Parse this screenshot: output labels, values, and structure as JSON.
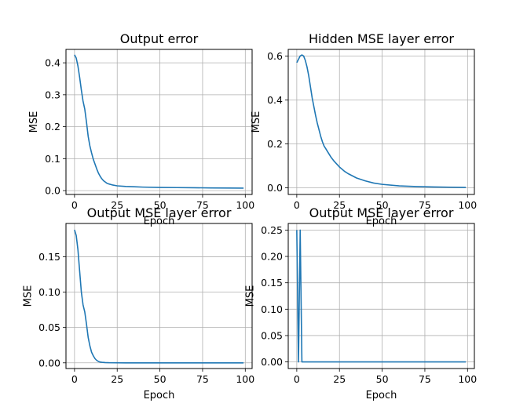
{
  "figure": {
    "background": "#ffffff",
    "line_color": "#1f77b4",
    "grid_color": "#b0b0b0"
  },
  "chart_data": [
    {
      "type": "line",
      "title": "Output error",
      "xlabel": "Epoch",
      "ylabel": "MSE",
      "xlim": [
        -5,
        104
      ],
      "ylim": [
        -0.012,
        0.442
      ],
      "xticks": [
        0,
        25,
        50,
        75,
        100
      ],
      "xtick_labels": [
        "0",
        "25",
        "50",
        "75",
        "100"
      ],
      "yticks": [
        0.0,
        0.1,
        0.2,
        0.3,
        0.4
      ],
      "ytick_labels": [
        "0.0",
        "0.1",
        "0.2",
        "0.3",
        "0.4"
      ],
      "grid": true,
      "series": [
        {
          "x": [
            0,
            1,
            2,
            3,
            4,
            5,
            6,
            7,
            8,
            9,
            10,
            11,
            12,
            13,
            14,
            15,
            16,
            17,
            18,
            19,
            20,
            22,
            25,
            30,
            35,
            40,
            50,
            60,
            70,
            80,
            90,
            99
          ],
          "y": [
            0.425,
            0.415,
            0.39,
            0.355,
            0.315,
            0.28,
            0.255,
            0.215,
            0.17,
            0.14,
            0.118,
            0.098,
            0.083,
            0.068,
            0.055,
            0.045,
            0.037,
            0.031,
            0.027,
            0.023,
            0.021,
            0.018,
            0.015,
            0.013,
            0.012,
            0.011,
            0.01,
            0.0095,
            0.009,
            0.0085,
            0.008,
            0.0078
          ]
        }
      ]
    },
    {
      "type": "line",
      "title": "Hidden MSE layer error",
      "xlabel": "Epoch",
      "ylabel": "MSE",
      "xlim": [
        -5,
        104
      ],
      "ylim": [
        -0.03,
        0.63
      ],
      "xticks": [
        0,
        25,
        50,
        75,
        100
      ],
      "xtick_labels": [
        "0",
        "25",
        "50",
        "75",
        "100"
      ],
      "yticks": [
        0.0,
        0.2,
        0.4,
        0.6
      ],
      "ytick_labels": [
        "0.0",
        "0.2",
        "0.4",
        "0.6"
      ],
      "grid": true,
      "series": [
        {
          "x": [
            0,
            1,
            2,
            3,
            4,
            5,
            6,
            7,
            8,
            9,
            10,
            11,
            12,
            13,
            14,
            15,
            16,
            17,
            18,
            20,
            22,
            25,
            28,
            30,
            35,
            40,
            45,
            50,
            60,
            70,
            80,
            90,
            99
          ],
          "y": [
            0.57,
            0.585,
            0.6,
            0.605,
            0.6,
            0.58,
            0.55,
            0.51,
            0.46,
            0.41,
            0.37,
            0.33,
            0.295,
            0.265,
            0.235,
            0.21,
            0.19,
            0.178,
            0.165,
            0.14,
            0.12,
            0.095,
            0.075,
            0.065,
            0.045,
            0.032,
            0.022,
            0.016,
            0.009,
            0.006,
            0.004,
            0.003,
            0.002
          ]
        }
      ]
    },
    {
      "type": "line",
      "title": "Output MSE layer error",
      "xlabel": "Epoch",
      "ylabel": "MSE",
      "xlim": [
        -5,
        104
      ],
      "ylim": [
        -0.008,
        0.197
      ],
      "xticks": [
        0,
        25,
        50,
        75,
        100
      ],
      "xtick_labels": [
        "0",
        "25",
        "50",
        "75",
        "100"
      ],
      "yticks": [
        0.0,
        0.05,
        0.1,
        0.15
      ],
      "ytick_labels": [
        "0.00",
        "0.05",
        "0.10",
        "0.15"
      ],
      "grid": true,
      "series": [
        {
          "x": [
            0,
            1,
            2,
            3,
            4,
            5,
            6,
            7,
            8,
            9,
            10,
            11,
            12,
            13,
            14,
            15,
            16,
            18,
            20,
            25,
            30,
            40,
            60,
            80,
            99
          ],
          "y": [
            0.188,
            0.18,
            0.16,
            0.13,
            0.1,
            0.082,
            0.072,
            0.055,
            0.036,
            0.024,
            0.015,
            0.01,
            0.006,
            0.0035,
            0.002,
            0.0012,
            0.0008,
            0.0004,
            0.0002,
            0.0001,
            0.0,
            0.0,
            0.0,
            0.0,
            0.0
          ]
        }
      ]
    },
    {
      "type": "line",
      "title": "Output MSE layer error",
      "xlabel": "Epoch",
      "ylabel": "MSE",
      "xlim": [
        -5,
        104
      ],
      "ylim": [
        -0.0125,
        0.2625
      ],
      "xticks": [
        0,
        25,
        50,
        75,
        100
      ],
      "xtick_labels": [
        "0",
        "25",
        "50",
        "75",
        "100"
      ],
      "yticks": [
        0.0,
        0.05,
        0.1,
        0.15,
        0.2,
        0.25
      ],
      "ytick_labels": [
        "0.00",
        "0.05",
        "0.10",
        "0.15",
        "0.20",
        "0.25"
      ],
      "grid": true,
      "series": [
        {
          "x": [
            0,
            1,
            2,
            3,
            4,
            5,
            99
          ],
          "y": [
            0.25,
            0.0,
            0.25,
            0.0,
            0.0,
            0.0,
            0.0
          ]
        }
      ]
    }
  ]
}
